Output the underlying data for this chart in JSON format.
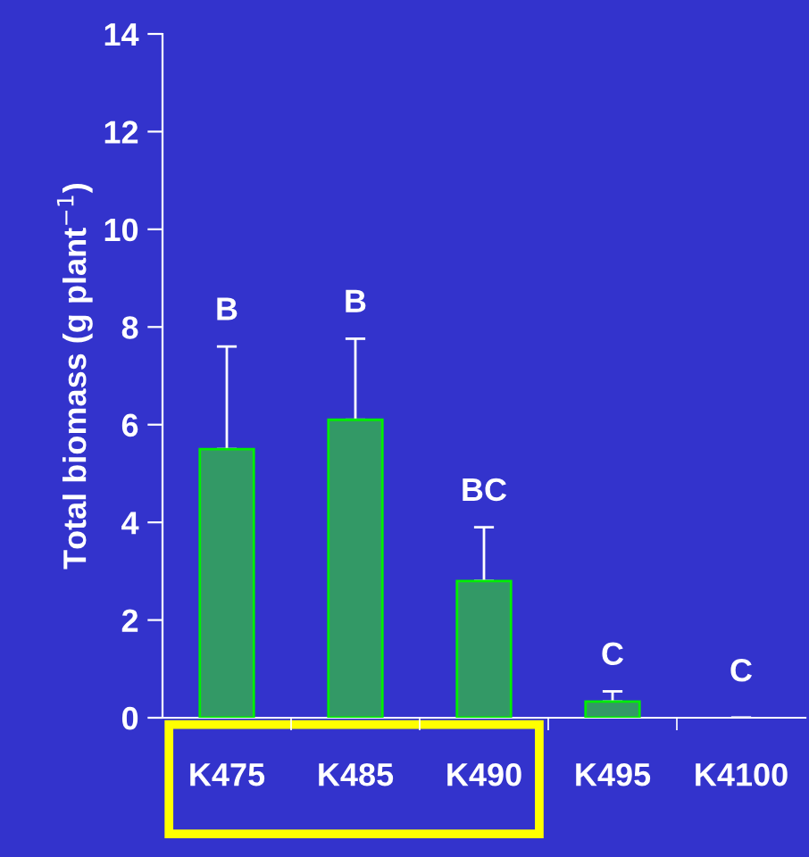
{
  "chart_data": {
    "type": "bar",
    "ylabel": "Total biomass (g plant$^{−1}$)",
    "categories": [
      "K475",
      "K485",
      "K490",
      "K495",
      "K4100"
    ],
    "values": [
      5.5,
      6.1,
      2.8,
      0.33,
      0
    ],
    "errors": [
      [
        5.5,
        7.6
      ],
      [
        6.1,
        7.76
      ],
      [
        2.8,
        3.9
      ],
      [
        0.33,
        0.54
      ],
      null
    ],
    "color": "#339966",
    "ylim": [
      0,
      14
    ],
    "yticks": [
      0,
      2,
      4,
      6,
      8,
      10,
      12,
      14
    ],
    "grid": false,
    "legend": false,
    "annotations": [
      "B",
      "B",
      "BC",
      "C",
      "C"
    ]
  }
}
